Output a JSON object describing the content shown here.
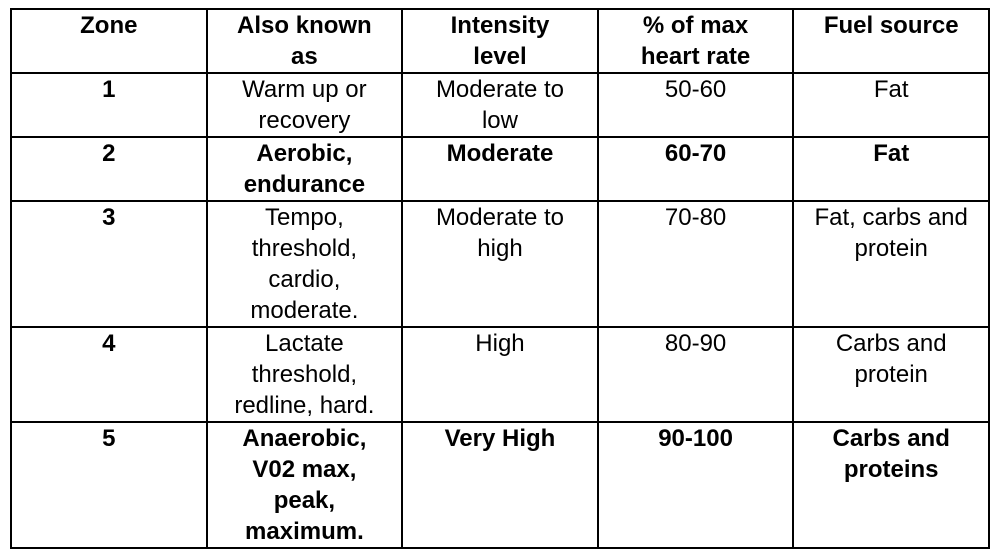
{
  "table": {
    "header": [
      "Zone",
      "Also known as",
      "Intensity level",
      "% of max heart rate",
      "Fuel source"
    ],
    "rows": [
      [
        "1",
        "Warm up or recovery",
        "Moderate to low",
        "50-60",
        "Fat"
      ],
      [
        "2",
        "Aerobic, endurance",
        "Moderate",
        "60-70",
        "Fat"
      ],
      [
        "3",
        "Tempo, threshold, cardio, moderate.",
        "Moderate to high",
        "70-80",
        "Fat, carbs and protein"
      ],
      [
        "4",
        "Lactate threshold, redline, hard.",
        "High",
        "80-90",
        "Carbs and protein"
      ],
      [
        "5",
        "Anaerobic, V02 max, peak, maximum.",
        "Very High",
        "90-100",
        "Carbs and proteins"
      ]
    ]
  }
}
